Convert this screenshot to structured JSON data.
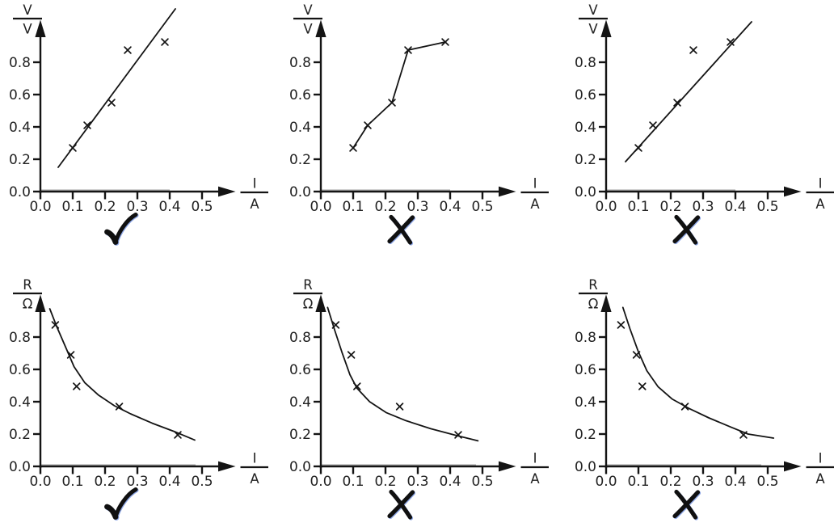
{
  "colors": {
    "background": "#ffffff",
    "ink": "#141414",
    "tick_label": "#2a2a2a",
    "axis_gray": "#b2b2b2",
    "verdict_fringe_blue": "#325fd2"
  },
  "marks": {
    "correct_glyph": "✓",
    "incorrect_glyph": "✗"
  },
  "chart_data": [
    {
      "id": "panel-v-i-straight-fit-correct",
      "type": "scatter",
      "verdict": "correct",
      "ylabel": {
        "symbol": "V",
        "unit": "V"
      },
      "xlabel": {
        "symbol": "I",
        "unit": "A"
      },
      "x_ticks": [
        "0.0",
        "0.1",
        "0.2",
        "0.3",
        "0.4",
        "0.5"
      ],
      "y_ticks": [
        "0.0",
        "0.2",
        "0.4",
        "0.6",
        "0.8"
      ],
      "xlim": [
        0,
        0.55
      ],
      "ylim": [
        0,
        1.1
      ],
      "grid": false,
      "points": [
        [
          0.1,
          0.27
        ],
        [
          0.145,
          0.41
        ],
        [
          0.22,
          0.55
        ],
        [
          0.27,
          0.875
        ],
        [
          0.385,
          0.925
        ]
      ],
      "fit": {
        "type": "line",
        "x1": 0.055,
        "y1": 0.15,
        "x2": 0.4175,
        "y2": 1.13
      },
      "baseline_gray_end": 0.4
    },
    {
      "id": "panel-v-i-dot-to-dot-incorrect",
      "type": "scatter",
      "verdict": "incorrect",
      "ylabel": {
        "symbol": "V",
        "unit": "V"
      },
      "xlabel": {
        "symbol": "I",
        "unit": "A"
      },
      "x_ticks": [
        "0.0",
        "0.1",
        "0.2",
        "0.3",
        "0.4",
        "0.5"
      ],
      "y_ticks": [
        "0.0",
        "0.2",
        "0.4",
        "0.6",
        "0.8"
      ],
      "xlim": [
        0,
        0.55
      ],
      "ylim": [
        0,
        1.1
      ],
      "grid": false,
      "points": [
        [
          0.1,
          0.27
        ],
        [
          0.145,
          0.41
        ],
        [
          0.22,
          0.55
        ],
        [
          0.27,
          0.875
        ],
        [
          0.385,
          0.925
        ]
      ],
      "fit": {
        "type": "dot-to-dot"
      },
      "baseline_gray_end": 0.4
    },
    {
      "id": "panel-v-i-line-through-points-incorrect",
      "type": "scatter",
      "verdict": "incorrect",
      "ylabel": {
        "symbol": "V",
        "unit": "V"
      },
      "xlabel": {
        "symbol": "I",
        "unit": "A"
      },
      "x_ticks": [
        "0.0",
        "0.1",
        "0.2",
        "0.3",
        "0.4",
        "0.5"
      ],
      "y_ticks": [
        "0.0",
        "0.2",
        "0.4",
        "0.6",
        "0.8"
      ],
      "xlim": [
        0,
        0.55
      ],
      "ylim": [
        0,
        1.1
      ],
      "grid": false,
      "points": [
        [
          0.1,
          0.27
        ],
        [
          0.145,
          0.41
        ],
        [
          0.22,
          0.55
        ],
        [
          0.27,
          0.875
        ],
        [
          0.385,
          0.925
        ]
      ],
      "fit": {
        "type": "line",
        "x1": 0.06,
        "y1": 0.185,
        "x2": 0.45,
        "y2": 1.05
      },
      "baseline_gray_end": 0.4
    },
    {
      "id": "panel-r-i-smooth-curve-correct",
      "type": "scatter",
      "verdict": "correct",
      "ylabel": {
        "symbol": "R",
        "unit": "Ω"
      },
      "xlabel": {
        "symbol": "I",
        "unit": "A"
      },
      "x_ticks": [
        "0.0",
        "0.1",
        "0.2",
        "0.3",
        "0.4",
        "0.5"
      ],
      "y_ticks": [
        "0.0",
        "0.2",
        "0.4",
        "0.6",
        "0.8"
      ],
      "xlim": [
        0,
        0.55
      ],
      "ylim": [
        0,
        1.05
      ],
      "grid": false,
      "points": [
        [
          0.046,
          0.875
        ],
        [
          0.094,
          0.69
        ],
        [
          0.112,
          0.495
        ],
        [
          0.244,
          0.37
        ],
        [
          0.425,
          0.195
        ]
      ],
      "fit": {
        "type": "curve",
        "path": [
          [
            0.029,
            0.975
          ],
          [
            0.05,
            0.867
          ],
          [
            0.079,
            0.733
          ],
          [
            0.104,
            0.617
          ],
          [
            0.1375,
            0.517
          ],
          [
            0.179,
            0.442
          ],
          [
            0.229,
            0.375
          ],
          [
            0.279,
            0.325
          ],
          [
            0.346,
            0.267
          ],
          [
            0.4125,
            0.217
          ],
          [
            0.4775,
            0.163
          ]
        ]
      },
      "baseline_gray_end": 0.48
    },
    {
      "id": "panel-r-i-curve-below-points-incorrect",
      "type": "scatter",
      "verdict": "incorrect",
      "ylabel": {
        "symbol": "R",
        "unit": "Ω"
      },
      "xlabel": {
        "symbol": "I",
        "unit": "A"
      },
      "x_ticks": [
        "0.0",
        "0.1",
        "0.2",
        "0.3",
        "0.4",
        "0.5"
      ],
      "y_ticks": [
        "0.0",
        "0.2",
        "0.4",
        "0.6",
        "0.8"
      ],
      "xlim": [
        0,
        0.55
      ],
      "ylim": [
        0,
        1.05
      ],
      "grid": false,
      "points": [
        [
          0.046,
          0.875
        ],
        [
          0.094,
          0.69
        ],
        [
          0.112,
          0.495
        ],
        [
          0.244,
          0.37
        ],
        [
          0.425,
          0.195
        ]
      ],
      "fit": {
        "type": "curve",
        "path": [
          [
            0.021,
            0.983
          ],
          [
            0.043,
            0.842
          ],
          [
            0.065,
            0.708
          ],
          [
            0.09,
            0.567
          ],
          [
            0.112,
            0.483
          ],
          [
            0.151,
            0.4
          ],
          [
            0.202,
            0.333
          ],
          [
            0.263,
            0.283
          ],
          [
            0.34,
            0.233
          ],
          [
            0.418,
            0.192
          ],
          [
            0.486,
            0.158
          ]
        ]
      },
      "baseline_gray_end": 0.48
    },
    {
      "id": "panel-r-i-curve-right-of-points-incorrect",
      "type": "scatter",
      "verdict": "incorrect",
      "ylabel": {
        "symbol": "R",
        "unit": "Ω"
      },
      "xlabel": {
        "symbol": "I",
        "unit": "A"
      },
      "x_ticks": [
        "0.0",
        "0.1",
        "0.2",
        "0.3",
        "0.4",
        "0.5"
      ],
      "y_ticks": [
        "0.0",
        "0.2",
        "0.4",
        "0.6",
        "0.8"
      ],
      "xlim": [
        0,
        0.55
      ],
      "ylim": [
        0,
        1.05
      ],
      "grid": false,
      "points": [
        [
          0.046,
          0.875
        ],
        [
          0.094,
          0.69
        ],
        [
          0.112,
          0.495
        ],
        [
          0.244,
          0.37
        ],
        [
          0.425,
          0.195
        ]
      ],
      "fit": {
        "type": "curve",
        "path": [
          [
            0.052,
            0.983
          ],
          [
            0.074,
            0.85
          ],
          [
            0.1,
            0.708
          ],
          [
            0.126,
            0.592
          ],
          [
            0.161,
            0.492
          ],
          [
            0.204,
            0.417
          ],
          [
            0.257,
            0.358
          ],
          [
            0.318,
            0.3
          ],
          [
            0.387,
            0.242
          ],
          [
            0.439,
            0.2
          ],
          [
            0.518,
            0.175
          ]
        ]
      },
      "baseline_gray_end": 0.48
    }
  ]
}
